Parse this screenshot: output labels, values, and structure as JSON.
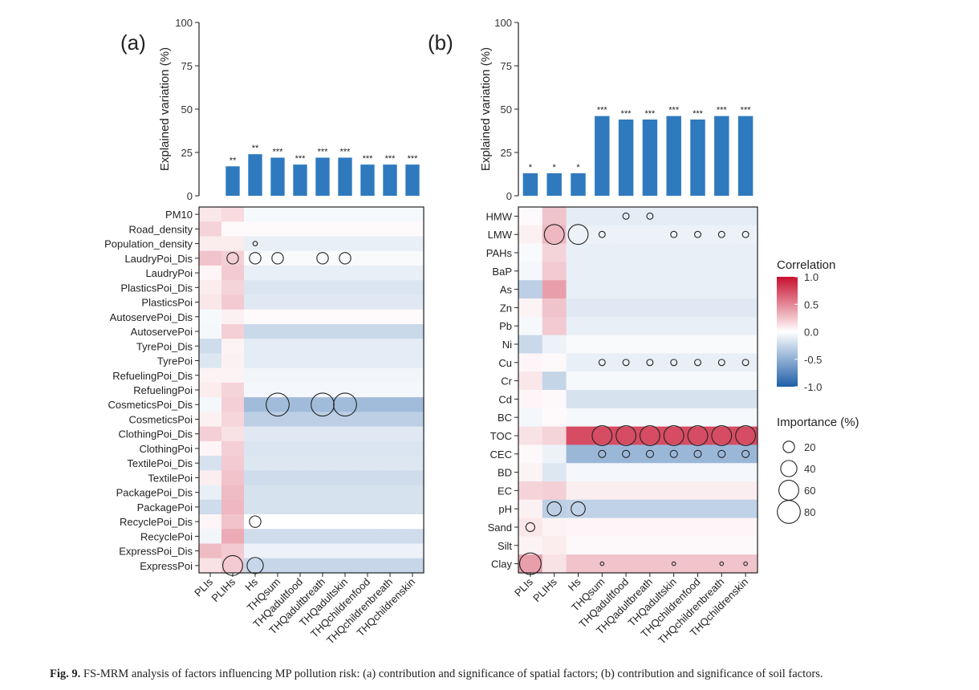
{
  "caption": {
    "label": "Fig. 9.",
    "text": "FS-MRM analysis of factors influencing MP pollution risk: (a) contribution and significance of spatial factors; (b) contribution and significance of soil factors."
  },
  "legend": {
    "correlation_title": "Correlation",
    "correlation_ticks": [
      "1.0",
      "0.5",
      "0.0",
      "-0.5",
      "-1.0"
    ],
    "importance_title": "Importance (%)",
    "importance_items": [
      "20",
      "40",
      "60",
      "80"
    ],
    "colors": {
      "pos": "#c8102e",
      "mid": "#ffffff",
      "neg": "#1f5fa8"
    }
  },
  "chart_data": [
    {
      "panel_label": "(a)",
      "type": "bar",
      "title": "",
      "xlabel": "",
      "ylabel": "Explained variation (%)",
      "ylim": [
        0,
        100
      ],
      "yticks": [
        "0",
        "25",
        "50",
        "75",
        "100"
      ],
      "bar_color": "#2f7abf",
      "categories": [
        "PLIs",
        "PLIHs",
        "Hs",
        "THQsum",
        "THQadultfood",
        "THQadultbreath",
        "THQadultskin",
        "THQchildrenfood",
        "THQchildrenbreath",
        "THQchildrenskin"
      ],
      "values": [
        0,
        17,
        24,
        22,
        18,
        22,
        22,
        18,
        18,
        18
      ],
      "significance": [
        "",
        "**",
        "**",
        "***",
        "***",
        "***",
        "***",
        "***",
        "***",
        "***"
      ],
      "heatmap": {
        "type": "heatmap",
        "rows": [
          "PM10",
          "Road_density",
          "Population_density",
          "LaudryPoi_Dis",
          "LaudryPoi",
          "PlasticsPoi_Dis",
          "PlasticsPoi",
          "AutoservePoi_Dis",
          "AutoservePoi",
          "TyrePoi_Dis",
          "TyrePoi",
          "RefuelingPoi_Dis",
          "RefuelingPoi",
          "CosmeticsPoi_Dis",
          "CosmeticsPoi",
          "ClothingPoi_Dis",
          "ClothingPoi",
          "TextilePoi_Dis",
          "TextilePoi",
          "PackagePoi_Dis",
          "PackagePoi",
          "RecyclePoi_Dis",
          "RecyclePoi",
          "ExpressPoi_Dis",
          "ExpressPoi"
        ],
        "row_corr": [
          [
            0.1,
            0.15,
            -0.04
          ],
          [
            0.18,
            0.02,
            0.02
          ],
          [
            0.08,
            0.08,
            -0.1
          ],
          [
            0.25,
            0.2,
            -0.03
          ],
          [
            0.04,
            0.22,
            -0.1
          ],
          [
            0.08,
            0.18,
            -0.16
          ],
          [
            0.1,
            0.22,
            -0.14
          ],
          [
            -0.04,
            0.06,
            0.02
          ],
          [
            -0.05,
            0.2,
            -0.24
          ],
          [
            -0.22,
            0.05,
            -0.12
          ],
          [
            -0.15,
            0.06,
            -0.12
          ],
          [
            0.05,
            0.05,
            -0.06
          ],
          [
            0.08,
            0.18,
            -0.05
          ],
          [
            -0.05,
            0.2,
            -0.42
          ],
          [
            0.06,
            0.17,
            -0.3
          ],
          [
            0.2,
            0.12,
            -0.14
          ],
          [
            0.04,
            0.2,
            -0.16
          ],
          [
            -0.18,
            0.22,
            -0.15
          ],
          [
            0.07,
            0.25,
            -0.22
          ],
          [
            -0.1,
            0.28,
            -0.18
          ],
          [
            -0.22,
            0.3,
            -0.18
          ],
          [
            0.04,
            0.25,
            0.0
          ],
          [
            -0.06,
            0.35,
            -0.22
          ],
          [
            0.28,
            0.22,
            -0.08
          ],
          [
            0.12,
            0.22,
            -0.25
          ]
        ],
        "importance": [
          {
            "row": 2,
            "col": 2,
            "value": 3
          },
          {
            "row": 3,
            "col": 1,
            "value": 20
          },
          {
            "row": 3,
            "col": 2,
            "value": 20
          },
          {
            "row": 3,
            "col": 3,
            "value": 20
          },
          {
            "row": 3,
            "col": 5,
            "value": 20
          },
          {
            "row": 3,
            "col": 6,
            "value": 20
          },
          {
            "row": 13,
            "col": 3,
            "value": 80
          },
          {
            "row": 13,
            "col": 5,
            "value": 80
          },
          {
            "row": 13,
            "col": 6,
            "value": 80
          },
          {
            "row": 21,
            "col": 2,
            "value": 20
          },
          {
            "row": 24,
            "col": 1,
            "value": 60
          },
          {
            "row": 24,
            "col": 2,
            "value": 40
          }
        ]
      }
    },
    {
      "panel_label": "(b)",
      "type": "bar",
      "title": "",
      "xlabel": "",
      "ylabel": "Explained variation (%)",
      "ylim": [
        0,
        100
      ],
      "yticks": [
        "0",
        "25",
        "50",
        "75",
        "100"
      ],
      "bar_color": "#2f7abf",
      "categories": [
        "PLIs",
        "PLIHs",
        "Hs",
        "THQsum",
        "THQadultfood",
        "THQadultbreath",
        "THQadultskin",
        "THQchildrenfood",
        "THQchildrenbreath",
        "THQchildrenskin"
      ],
      "values": [
        13,
        13,
        13,
        46,
        44,
        44,
        46,
        44,
        46,
        46
      ],
      "significance": [
        "*",
        "*",
        "*",
        "***",
        "***",
        "***",
        "***",
        "***",
        "***",
        "***"
      ],
      "heatmap": {
        "type": "heatmap",
        "rows": [
          "HMW",
          "LMW",
          "PAHs",
          "BaP",
          "As",
          "Zn",
          "Pb",
          "Ni",
          "Cu",
          "Cr",
          "Cd",
          "BC",
          "TOC",
          "CEC",
          "BD",
          "EC",
          "pH",
          "Sand",
          "Silt",
          "Clay"
        ],
        "row_corr": [
          [
            0.02,
            0.25,
            -0.12
          ],
          [
            0.06,
            0.3,
            -0.08
          ],
          [
            -0.03,
            0.18,
            -0.1
          ],
          [
            -0.05,
            0.22,
            -0.1
          ],
          [
            -0.3,
            0.4,
            -0.1
          ],
          [
            0.05,
            0.25,
            -0.14
          ],
          [
            -0.04,
            0.22,
            -0.1
          ],
          [
            -0.24,
            -0.08,
            -0.03
          ],
          [
            0.04,
            0.03,
            -0.1
          ],
          [
            0.1,
            -0.26,
            -0.04
          ],
          [
            0.04,
            0.03,
            -0.18
          ],
          [
            -0.05,
            0.02,
            -0.04
          ],
          [
            0.12,
            0.18,
            0.75
          ],
          [
            0.03,
            -0.08,
            -0.45
          ],
          [
            0.05,
            -0.15,
            -0.05
          ],
          [
            0.18,
            0.2,
            0.07
          ],
          [
            0.06,
            -0.3,
            -0.28
          ],
          [
            0.1,
            0.05,
            0.04
          ],
          [
            0.05,
            0.08,
            0.03
          ],
          [
            0.4,
            0.12,
            0.25
          ]
        ],
        "importance": [
          {
            "row": 0,
            "col": 4,
            "value": 6
          },
          {
            "row": 0,
            "col": 5,
            "value": 6
          },
          {
            "row": 1,
            "col": 1,
            "value": 60
          },
          {
            "row": 1,
            "col": 2,
            "value": 60
          },
          {
            "row": 1,
            "col": 3,
            "value": 6
          },
          {
            "row": 1,
            "col": 6,
            "value": 6
          },
          {
            "row": 1,
            "col": 7,
            "value": 6
          },
          {
            "row": 1,
            "col": 8,
            "value": 6
          },
          {
            "row": 1,
            "col": 9,
            "value": 6
          },
          {
            "row": 8,
            "col": 3,
            "value": 6
          },
          {
            "row": 8,
            "col": 4,
            "value": 6
          },
          {
            "row": 8,
            "col": 5,
            "value": 6
          },
          {
            "row": 8,
            "col": 6,
            "value": 6
          },
          {
            "row": 8,
            "col": 7,
            "value": 6
          },
          {
            "row": 8,
            "col": 8,
            "value": 6
          },
          {
            "row": 8,
            "col": 9,
            "value": 6
          },
          {
            "row": 12,
            "col": 3,
            "value": 60
          },
          {
            "row": 12,
            "col": 4,
            "value": 60
          },
          {
            "row": 12,
            "col": 5,
            "value": 60
          },
          {
            "row": 12,
            "col": 6,
            "value": 60
          },
          {
            "row": 12,
            "col": 7,
            "value": 60
          },
          {
            "row": 12,
            "col": 8,
            "value": 60
          },
          {
            "row": 12,
            "col": 9,
            "value": 60
          },
          {
            "row": 13,
            "col": 3,
            "value": 8
          },
          {
            "row": 13,
            "col": 4,
            "value": 8
          },
          {
            "row": 13,
            "col": 5,
            "value": 8
          },
          {
            "row": 13,
            "col": 6,
            "value": 8
          },
          {
            "row": 13,
            "col": 7,
            "value": 8
          },
          {
            "row": 13,
            "col": 8,
            "value": 8
          },
          {
            "row": 13,
            "col": 9,
            "value": 8
          },
          {
            "row": 16,
            "col": 1,
            "value": 30
          },
          {
            "row": 16,
            "col": 2,
            "value": 30
          },
          {
            "row": 17,
            "col": 0,
            "value": 12
          },
          {
            "row": 19,
            "col": 0,
            "value": 70
          },
          {
            "row": 19,
            "col": 3,
            "value": 2
          },
          {
            "row": 19,
            "col": 6,
            "value": 2
          },
          {
            "row": 19,
            "col": 8,
            "value": 2
          },
          {
            "row": 19,
            "col": 9,
            "value": 2
          }
        ]
      }
    }
  ]
}
